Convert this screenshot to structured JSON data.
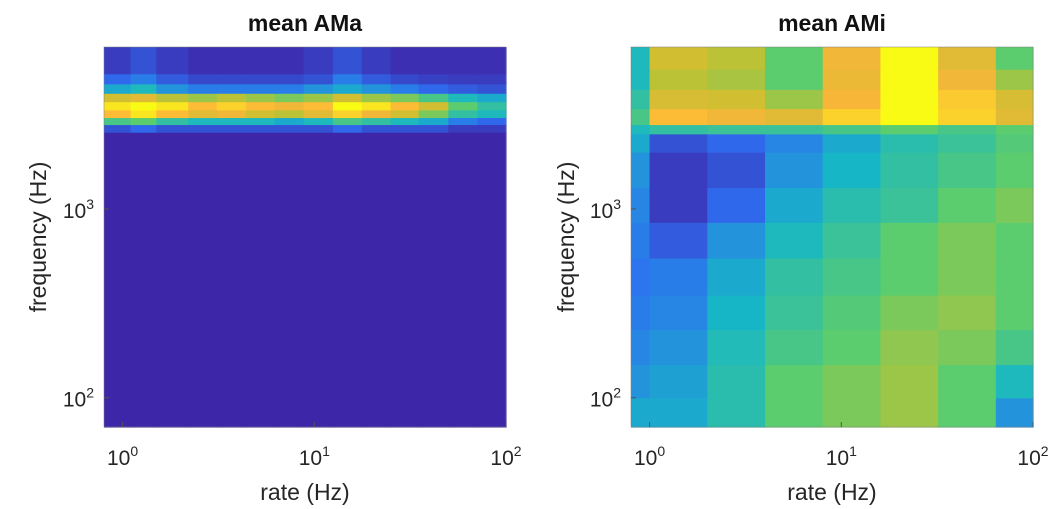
{
  "chart_data": [
    {
      "type": "heatmap",
      "title": "mean AMa",
      "xlabel": "rate (Hz)",
      "ylabel": "frequency (Hz)",
      "xscale": "log",
      "yscale": "log",
      "xlim": [
        0.8,
        100
      ],
      "ylim": [
        70,
        7200
      ],
      "xticks": [
        {
          "base": "10",
          "exp": "0"
        },
        {
          "base": "10",
          "exp": "1"
        },
        {
          "base": "10",
          "exp": "2"
        }
      ],
      "yticks": [
        {
          "base": "10",
          "exp": "2"
        },
        {
          "base": "10",
          "exp": "3"
        }
      ],
      "colormap": [
        "#3e26a8",
        "#2e6ff2",
        "#17b7c5",
        "#5ccd6e",
        "#c6c12f",
        "#fcb53a",
        "#f9fb15"
      ],
      "description_of_values": "normalized 0-1 color level",
      "rate_bins": [
        0.8,
        1.1,
        1.5,
        2.2,
        3.1,
        4.4,
        6.2,
        8.8,
        12.5,
        17.7,
        25,
        35,
        50,
        71,
        100
      ],
      "freq_rows": [
        {
          "from": 70,
          "to": 2550,
          "values": [
            0,
            0,
            0,
            0,
            0,
            0,
            0,
            0,
            0,
            0,
            0,
            0,
            0,
            0
          ]
        },
        {
          "from": 2550,
          "to": 2800,
          "values": [
            0.1,
            0.15,
            0.1,
            0.1,
            0.1,
            0.1,
            0.1,
            0.1,
            0.15,
            0.1,
            0.1,
            0.1,
            0.05,
            0.05
          ]
        },
        {
          "from": 2800,
          "to": 3050,
          "values": [
            0.45,
            0.5,
            0.4,
            0.35,
            0.35,
            0.35,
            0.3,
            0.35,
            0.45,
            0.4,
            0.35,
            0.3,
            0.2,
            0.15
          ]
        },
        {
          "from": 3050,
          "to": 3350,
          "values": [
            0.85,
            0.95,
            0.85,
            0.75,
            0.8,
            0.7,
            0.65,
            0.75,
            0.9,
            0.8,
            0.7,
            0.55,
            0.4,
            0.35
          ]
        },
        {
          "from": 3350,
          "to": 3700,
          "values": [
            0.95,
            1.0,
            0.95,
            0.85,
            0.9,
            0.85,
            0.8,
            0.85,
            1.0,
            0.95,
            0.85,
            0.7,
            0.5,
            0.4
          ]
        },
        {
          "from": 3700,
          "to": 4100,
          "values": [
            0.7,
            0.75,
            0.65,
            0.6,
            0.65,
            0.6,
            0.55,
            0.6,
            0.7,
            0.6,
            0.55,
            0.45,
            0.35,
            0.3
          ]
        },
        {
          "from": 4100,
          "to": 4600,
          "values": [
            0.3,
            0.35,
            0.25,
            0.2,
            0.2,
            0.2,
            0.2,
            0.25,
            0.3,
            0.25,
            0.2,
            0.15,
            0.12,
            0.1
          ]
        },
        {
          "from": 4600,
          "to": 5200,
          "values": [
            0.15,
            0.2,
            0.12,
            0.08,
            0.08,
            0.08,
            0.08,
            0.1,
            0.2,
            0.12,
            0.08,
            0.06,
            0.05,
            0.05
          ]
        },
        {
          "from": 5200,
          "to": 7200,
          "values": [
            0.05,
            0.1,
            0.05,
            0.02,
            0.02,
            0.02,
            0.02,
            0.05,
            0.1,
            0.05,
            0.02,
            0.02,
            0.02,
            0.02
          ]
        }
      ]
    },
    {
      "type": "heatmap",
      "title": "mean AMi",
      "xlabel": "rate (Hz)",
      "ylabel": "frequency (Hz)",
      "xscale": "log",
      "yscale": "log",
      "xlim": [
        0.8,
        100
      ],
      "ylim": [
        70,
        7200
      ],
      "xticks": [
        {
          "base": "10",
          "exp": "0"
        },
        {
          "base": "10",
          "exp": "1"
        },
        {
          "base": "10",
          "exp": "2"
        }
      ],
      "yticks": [
        {
          "base": "10",
          "exp": "2"
        },
        {
          "base": "10",
          "exp": "3"
        }
      ],
      "colormap": [
        "#3e26a8",
        "#2e6ff2",
        "#17b7c5",
        "#5ccd6e",
        "#c6c12f",
        "#fcb53a",
        "#f9fb15"
      ],
      "description_of_values": "normalized 0-1 color level",
      "rate_bins": [
        0.8,
        1,
        2,
        4,
        8,
        16,
        32,
        64,
        100
      ],
      "freq_rows": [
        {
          "from": 70,
          "to": 100,
          "values": [
            0.3,
            0.3,
            0.38,
            0.5,
            0.55,
            0.6,
            0.5,
            0.25
          ]
        },
        {
          "from": 100,
          "to": 150,
          "values": [
            0.25,
            0.28,
            0.38,
            0.5,
            0.55,
            0.6,
            0.5,
            0.35
          ]
        },
        {
          "from": 150,
          "to": 230,
          "values": [
            0.22,
            0.25,
            0.36,
            0.45,
            0.5,
            0.58,
            0.55,
            0.45
          ]
        },
        {
          "from": 230,
          "to": 350,
          "values": [
            0.2,
            0.22,
            0.33,
            0.42,
            0.48,
            0.55,
            0.58,
            0.5
          ]
        },
        {
          "from": 350,
          "to": 550,
          "values": [
            0.18,
            0.2,
            0.3,
            0.4,
            0.45,
            0.5,
            0.55,
            0.5
          ]
        },
        {
          "from": 550,
          "to": 850,
          "values": [
            0.2,
            0.12,
            0.25,
            0.35,
            0.42,
            0.5,
            0.55,
            0.5
          ]
        },
        {
          "from": 850,
          "to": 1300,
          "values": [
            0.22,
            0.05,
            0.15,
            0.3,
            0.38,
            0.42,
            0.5,
            0.55
          ]
        },
        {
          "from": 1300,
          "to": 2000,
          "values": [
            0.25,
            0.05,
            0.1,
            0.25,
            0.33,
            0.4,
            0.45,
            0.5
          ]
        },
        {
          "from": 2000,
          "to": 2500,
          "values": [
            0.3,
            0.1,
            0.15,
            0.22,
            0.3,
            0.38,
            0.42,
            0.48
          ]
        },
        {
          "from": 2500,
          "to": 2800,
          "values": [
            0.35,
            0.4,
            0.42,
            0.42,
            0.45,
            0.5,
            0.45,
            0.5
          ]
        },
        {
          "from": 2800,
          "to": 3400,
          "values": [
            0.45,
            0.85,
            0.8,
            0.75,
            0.9,
            1.0,
            0.9,
            0.75
          ]
        },
        {
          "from": 3400,
          "to": 4300,
          "values": [
            0.4,
            0.72,
            0.7,
            0.6,
            0.82,
            1.0,
            0.88,
            0.72
          ]
        },
        {
          "from": 4300,
          "to": 5500,
          "values": [
            0.35,
            0.65,
            0.62,
            0.5,
            0.78,
            1.0,
            0.8,
            0.6
          ]
        },
        {
          "from": 5500,
          "to": 7200,
          "values": [
            0.35,
            0.7,
            0.65,
            0.5,
            0.8,
            1.0,
            0.75,
            0.5
          ]
        }
      ]
    }
  ]
}
